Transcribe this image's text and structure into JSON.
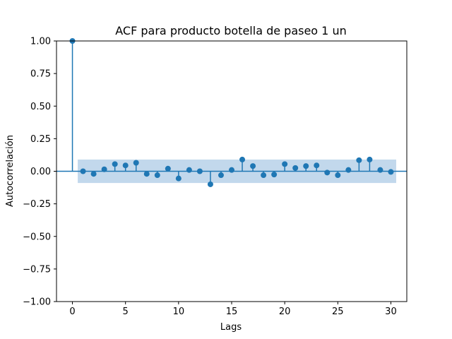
{
  "chart_data": {
    "type": "stem",
    "title": "ACF para producto botella de paseo 1 un",
    "xlabel": "Lags",
    "ylabel": "Autocorrelación",
    "xlim": [
      -1.5,
      31.5
    ],
    "ylim": [
      -1.0,
      1.0
    ],
    "xticks": [
      0,
      5,
      10,
      15,
      20,
      25,
      30
    ],
    "yticks": [
      -1.0,
      -0.75,
      -0.5,
      -0.25,
      0.0,
      0.25,
      0.5,
      0.75,
      1.0
    ],
    "ytick_labels": [
      "−1.00",
      "−0.75",
      "−0.50",
      "−0.25",
      "0.00",
      "0.25",
      "0.50",
      "0.75",
      "1.00"
    ],
    "lags": [
      0,
      1,
      2,
      3,
      4,
      5,
      6,
      7,
      8,
      9,
      10,
      11,
      12,
      13,
      14,
      15,
      16,
      17,
      18,
      19,
      20,
      21,
      22,
      23,
      24,
      25,
      26,
      27,
      28,
      29,
      30
    ],
    "acf": [
      1.0,
      0.0,
      -0.02,
      0.015,
      0.055,
      0.045,
      0.065,
      -0.02,
      -0.03,
      0.02,
      -0.055,
      0.01,
      0.0,
      -0.1,
      -0.03,
      0.01,
      0.09,
      0.04,
      -0.03,
      -0.025,
      0.055,
      0.025,
      0.04,
      0.045,
      -0.01,
      -0.03,
      0.01,
      0.085,
      0.09,
      0.01,
      -0.005
    ],
    "confidence_band": {
      "lags": [
        0.5,
        30.5
      ],
      "upper": [
        0.09,
        0.09
      ],
      "lower": [
        -0.09,
        -0.09
      ]
    },
    "colors": {
      "marker": "#1f77b4",
      "band": "#c2d8ec",
      "zero_line": "#1f77b4"
    },
    "grid": false,
    "legend": "none"
  }
}
